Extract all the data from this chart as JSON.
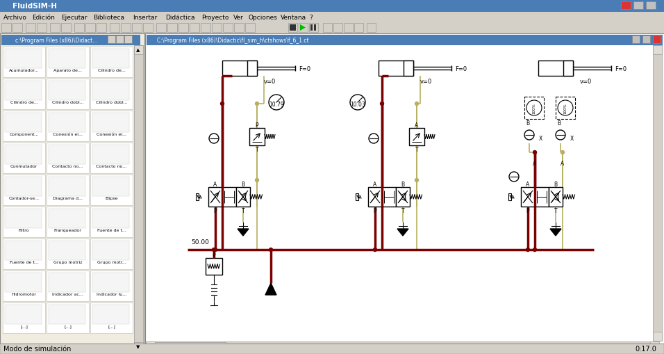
{
  "title_bar": "FluidSIM-H",
  "menu_items": [
    "Archivo",
    "Edición",
    "Ejecutar",
    "Biblioteca",
    "Insertar",
    "Didáctica",
    "Proyecto",
    "Ver",
    "Opciones",
    "Ventana",
    "?"
  ],
  "file_path_left": "c:\\Program Files (x86)\\Didact...",
  "file_path_right": "C:\\Program Files (x86)\\Didactic\\fl_sim_h\\ctshows\\f_6_1.ct",
  "status_bar_left": "Modo de simulación",
  "status_bar_right": "0:17.0",
  "bg_color": "#d4d0c8",
  "dark_red": "#7b0000",
  "olive": "#b8b060",
  "black": "#000000",
  "gauge1_label": "10.79",
  "gauge2_label": "10.03",
  "pressure_label": "50.00",
  "f0_label": "F=0",
  "v0_label": "v=0"
}
